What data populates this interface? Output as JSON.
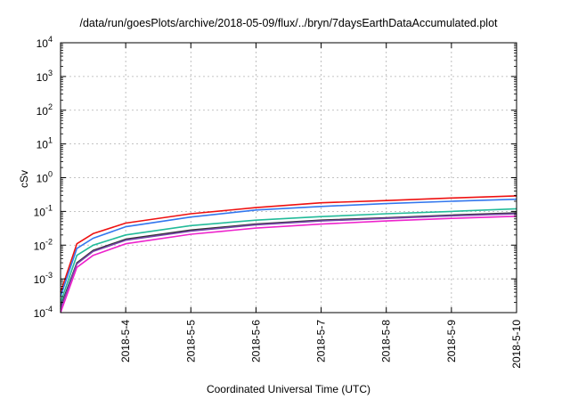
{
  "chart_data": {
    "type": "line",
    "title": "/data/run/goesPlots/archive/2018-05-09/flux/../bryn/7daysEarthDataAccumulated.plot",
    "xlabel": "Coordinated Universal Time (UTC)",
    "ylabel": "cSv",
    "y_scale": "log",
    "ylim": [
      0.0001,
      10000
    ],
    "xlim": [
      "2018-05-03",
      "2018-05-10"
    ],
    "grid": true,
    "legend": "none",
    "x_tick_labels": [
      "2018-5-4",
      "2018-5-5",
      "2018-5-6",
      "2018-5-7",
      "2018-5-8",
      "2018-5-9",
      "2018-5-10"
    ],
    "y_ticks": [
      {
        "base": "10",
        "exp": "-4"
      },
      {
        "base": "10",
        "exp": "-3"
      },
      {
        "base": "10",
        "exp": "-2"
      },
      {
        "base": "10",
        "exp": "-1"
      },
      {
        "base": "10",
        "exp": "0"
      },
      {
        "base": "10",
        "exp": "1"
      },
      {
        "base": "10",
        "exp": "2"
      },
      {
        "base": "10",
        "exp": "3"
      },
      {
        "base": "10",
        "exp": "4"
      }
    ],
    "x": [
      "2018-05-03",
      "2018-05-03 06:00",
      "2018-05-03 12:00",
      "2018-05-04",
      "2018-05-05",
      "2018-05-06",
      "2018-05-07",
      "2018-05-08",
      "2018-05-09",
      "2018-05-10"
    ],
    "series": [
      {
        "color": "#ee1111",
        "values": [
          0.0004,
          0.011,
          0.022,
          0.045,
          0.085,
          0.13,
          0.18,
          0.21,
          0.25,
          0.29
        ]
      },
      {
        "color": "#3377ee",
        "values": [
          0.0003,
          0.008,
          0.016,
          0.035,
          0.068,
          0.11,
          0.14,
          0.17,
          0.2,
          0.23
        ]
      },
      {
        "color": "#22bb99",
        "values": [
          0.0002,
          0.005,
          0.01,
          0.02,
          0.038,
          0.055,
          0.07,
          0.085,
          0.1,
          0.12
        ]
      },
      {
        "color": "#333333",
        "values": [
          0.00015,
          0.003,
          0.007,
          0.015,
          0.028,
          0.042,
          0.055,
          0.065,
          0.078,
          0.09
        ]
      },
      {
        "color": "#7744aa",
        "values": [
          0.00013,
          0.0028,
          0.0065,
          0.014,
          0.026,
          0.04,
          0.052,
          0.062,
          0.074,
          0.085
        ]
      },
      {
        "color": "#ee22cc",
        "values": [
          0.0001,
          0.0022,
          0.005,
          0.011,
          0.021,
          0.032,
          0.042,
          0.052,
          0.062,
          0.072
        ]
      }
    ]
  }
}
